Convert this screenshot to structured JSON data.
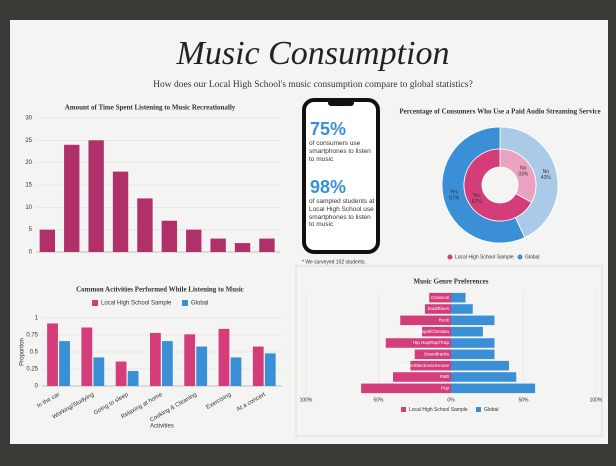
{
  "poster": {
    "title": "Music Consumption",
    "subtitle": "How does our Local High School's music consumption compare to global statistics?"
  },
  "infographic": {
    "stat1": "75%",
    "text1": "of consumers use smartphones to listen to music",
    "stat2": "98%",
    "text2": "of sampled students at Local High School use smartphones to listen to music",
    "note": "* We surveyed 102 students."
  },
  "chart_data": [
    {
      "type": "bar",
      "title": "Amount of Time Spent Listening to Music Recreationally",
      "categories": [
        null,
        null,
        null,
        null,
        null,
        null,
        null,
        null,
        null,
        null
      ],
      "values": [
        5,
        24,
        25,
        18,
        12,
        7,
        5,
        3,
        2,
        3
      ],
      "color": "#b0306a",
      "ylim": [
        0,
        30
      ],
      "yticks": [
        0,
        5,
        10,
        15,
        20,
        25,
        30
      ],
      "grid": true
    },
    {
      "type": "pie",
      "title": "Percentage of Consumers Who Use a Paid Audio Streaming Service",
      "categories": [
        "No",
        "Yes"
      ],
      "series": [
        {
          "name": "Global",
          "colors": [
            "#a9cbe8",
            "#3a8fd6"
          ],
          "values": [
            43,
            57
          ],
          "value_labels": [
            "43%",
            "57%"
          ]
        },
        {
          "name": "Local High School Sample",
          "colors": [
            "#e9a3c0",
            "#d43d7a"
          ],
          "values": [
            33,
            67
          ],
          "value_labels": [
            "33%",
            "67%"
          ]
        }
      ]
    },
    {
      "type": "bar",
      "title": "Common Activities Performed While Listening to Music",
      "x_label": "Activities",
      "y_label": "Proportion",
      "categories": [
        "In the car",
        "Working/Studying",
        "Going to sleep",
        "Relaxing at home",
        "Cooking & Cleaning",
        "Exercising",
        "At a concert"
      ],
      "series": [
        {
          "name": "Local High School Sample",
          "color": "#d43d7a",
          "values": [
            0.92,
            0.86,
            0.36,
            0.78,
            0.76,
            0.84,
            0.58
          ]
        },
        {
          "name": "Global",
          "color": "#3a8fd6",
          "values": [
            0.66,
            0.42,
            0.22,
            0.66,
            0.58,
            0.42,
            0.48
          ]
        }
      ],
      "ylim": [
        0,
        1
      ],
      "yticks": [
        0,
        0.25,
        0.5,
        0.75,
        1
      ],
      "grid": true
    },
    {
      "type": "barh",
      "title": "Music Genre Preferences",
      "categories": [
        "Classical",
        "Soul/Blues",
        "Rock",
        "Gospel/Christian",
        "Hip Hop/Rap/Trap",
        "Soundtracks",
        "Dance/Electronic/House",
        "R&B",
        "Pop"
      ],
      "series": [
        {
          "name": "Local High School Sample",
          "color": "#d43d7a",
          "side": "left",
          "values": [
            15,
            18,
            35,
            20,
            45,
            25,
            28,
            40,
            62
          ]
        },
        {
          "name": "Global",
          "color": "#3a8fd6",
          "side": "right",
          "values": [
            10,
            15,
            30,
            22,
            30,
            30,
            40,
            45,
            58
          ]
        }
      ],
      "xlim": [
        -100,
        100
      ],
      "xticks": [
        {
          "value": -100,
          "label": "100%"
        },
        {
          "value": -50,
          "label": "50%"
        },
        {
          "value": 0,
          "label": "0%"
        },
        {
          "value": 50,
          "label": "50%"
        },
        {
          "value": 100,
          "label": "100%"
        }
      ],
      "grid": true
    }
  ]
}
